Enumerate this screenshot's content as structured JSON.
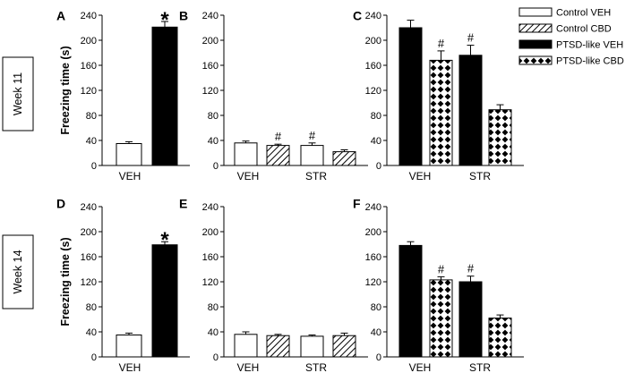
{
  "chart_data": [
    {
      "panel": "A",
      "type": "bar",
      "ylabel": "Freezing time (s)",
      "ylim": [
        0,
        240
      ],
      "ticks": [
        0,
        40,
        80,
        120,
        160,
        200,
        240
      ],
      "categories": [
        "VEH"
      ],
      "bars": [
        {
          "group": "Control VEH",
          "category": "VEH",
          "value": 35,
          "error": 3,
          "mark": ""
        },
        {
          "group": "PTSD-like VEH",
          "category": "VEH",
          "value": 221,
          "error": 9,
          "mark": "*"
        }
      ]
    },
    {
      "panel": "B",
      "type": "bar",
      "ylabel": "",
      "ylim": [
        0,
        240
      ],
      "ticks": [
        0,
        40,
        80,
        120,
        160,
        200,
        240
      ],
      "categories": [
        "VEH",
        "STR"
      ],
      "bars": [
        {
          "group": "Control VEH",
          "category": "VEH",
          "value": 36,
          "error": 3,
          "mark": ""
        },
        {
          "group": "Control CBD",
          "category": "VEH",
          "value": 32,
          "error": 2,
          "mark": "#"
        },
        {
          "group": "Control VEH",
          "category": "STR",
          "value": 32,
          "error": 4,
          "mark": "#"
        },
        {
          "group": "Control CBD",
          "category": "STR",
          "value": 22,
          "error": 3,
          "mark": ""
        }
      ]
    },
    {
      "panel": "C",
      "type": "bar",
      "ylabel": "",
      "ylim": [
        0,
        240
      ],
      "ticks": [
        0,
        40,
        80,
        120,
        160,
        200,
        240
      ],
      "categories": [
        "VEH",
        "STR"
      ],
      "bars": [
        {
          "group": "PTSD-like VEH",
          "category": "VEH",
          "value": 220,
          "error": 12,
          "mark": ""
        },
        {
          "group": "PTSD-like CBD",
          "category": "VEH",
          "value": 168,
          "error": 15,
          "mark": "#"
        },
        {
          "group": "PTSD-like VEH",
          "category": "STR",
          "value": 176,
          "error": 16,
          "mark": "#"
        },
        {
          "group": "PTSD-like CBD",
          "category": "STR",
          "value": 89,
          "error": 8,
          "mark": ""
        }
      ]
    },
    {
      "panel": "D",
      "type": "bar",
      "ylabel": "Freezing time (s)",
      "ylim": [
        0,
        240
      ],
      "ticks": [
        0,
        40,
        80,
        120,
        160,
        200,
        240
      ],
      "categories": [
        "VEH"
      ],
      "bars": [
        {
          "group": "Control VEH",
          "category": "VEH",
          "value": 35,
          "error": 3,
          "mark": ""
        },
        {
          "group": "PTSD-like VEH",
          "category": "VEH",
          "value": 179,
          "error": 5,
          "mark": "*"
        }
      ]
    },
    {
      "panel": "E",
      "type": "bar",
      "ylabel": "",
      "ylim": [
        0,
        240
      ],
      "ticks": [
        0,
        40,
        80,
        120,
        160,
        200,
        240
      ],
      "categories": [
        "VEH",
        "STR"
      ],
      "bars": [
        {
          "group": "Control VEH",
          "category": "VEH",
          "value": 36,
          "error": 4,
          "mark": ""
        },
        {
          "group": "Control CBD",
          "category": "VEH",
          "value": 34,
          "error": 2,
          "mark": ""
        },
        {
          "group": "Control VEH",
          "category": "STR",
          "value": 33,
          "error": 2,
          "mark": ""
        },
        {
          "group": "Control CBD",
          "category": "STR",
          "value": 34,
          "error": 4,
          "mark": ""
        }
      ]
    },
    {
      "panel": "F",
      "type": "bar",
      "ylabel": "",
      "ylim": [
        0,
        240
      ],
      "ticks": [
        0,
        40,
        80,
        120,
        160,
        200,
        240
      ],
      "categories": [
        "VEH",
        "STR"
      ],
      "bars": [
        {
          "group": "PTSD-like VEH",
          "category": "VEH",
          "value": 178,
          "error": 6,
          "mark": ""
        },
        {
          "group": "PTSD-like CBD",
          "category": "VEH",
          "value": 123,
          "error": 5,
          "mark": "#"
        },
        {
          "group": "PTSD-like VEH",
          "category": "STR",
          "value": 120,
          "error": 9,
          "mark": "#"
        },
        {
          "group": "PTSD-like CBD",
          "category": "STR",
          "value": 62,
          "error": 5,
          "mark": ""
        }
      ]
    }
  ],
  "legend": [
    {
      "label": "Control VEH",
      "fill": "white"
    },
    {
      "label": "Control CBD",
      "fill": "hatch"
    },
    {
      "label": "PTSD-like VEH",
      "fill": "black"
    },
    {
      "label": "PTSD-like CBD",
      "fill": "checker"
    }
  ],
  "rows": [
    {
      "label": "Week 11"
    },
    {
      "label": "Week 14"
    }
  ],
  "colors": {
    "bar_stroke": "#000000",
    "solid_fill": "#000000",
    "background": "#ffffff"
  }
}
